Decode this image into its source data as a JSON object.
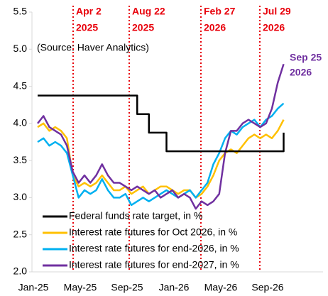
{
  "chart_data": {
    "type": "line",
    "categories": [
      "Jan-25",
      null,
      null,
      null,
      null,
      null,
      null,
      null,
      "May-25",
      null,
      null,
      null,
      null,
      null,
      null,
      null,
      "Sep-25",
      null,
      null,
      null,
      null,
      null,
      null,
      null,
      "Jan-26",
      null,
      null,
      null,
      null,
      null,
      null,
      null,
      "May-26",
      null,
      null,
      null,
      null,
      null,
      null,
      null,
      "Sep-26",
      null,
      null,
      null,
      null,
      null,
      null,
      null
    ],
    "series": [
      {
        "name": "Federal funds rate target, in %",
        "color": "#000000",
        "step": true,
        "values": [
          4.375,
          4.375,
          4.375,
          4.375,
          4.375,
          4.375,
          4.375,
          4.375,
          4.375,
          4.375,
          4.375,
          4.375,
          4.375,
          4.375,
          4.375,
          4.375,
          4.375,
          4.125,
          4.125,
          3.875,
          3.875,
          3.875,
          3.625,
          3.625,
          3.625,
          3.625,
          3.625,
          3.625,
          3.625,
          3.625,
          3.625,
          3.625,
          3.625,
          3.625,
          3.625,
          3.625,
          3.625,
          3.625,
          3.625,
          3.625,
          3.625,
          3.625,
          3.875,
          null,
          null,
          null,
          null,
          null
        ]
      },
      {
        "name": "Interest rate futures for Oct 2026, in %",
        "color": "#ffc000",
        "values": [
          3.95,
          4.0,
          3.9,
          3.95,
          3.9,
          3.8,
          3.3,
          3.15,
          3.2,
          3.15,
          3.2,
          3.3,
          3.2,
          3.1,
          3.1,
          3.15,
          3.05,
          3.1,
          3.15,
          3.05,
          3.1,
          3.15,
          3.15,
          3.1,
          3.05,
          3.1,
          3.1,
          3.0,
          3.05,
          3.15,
          3.3,
          3.5,
          3.6,
          3.65,
          3.6,
          3.7,
          3.8,
          3.85,
          3.8,
          3.85,
          3.8,
          3.9,
          4.05,
          null,
          null,
          null,
          null,
          null
        ]
      },
      {
        "name": "Interest rate futures for end-2026, in %",
        "color": "#00b0f0",
        "values": [
          3.75,
          3.8,
          3.7,
          3.75,
          3.7,
          3.6,
          3.3,
          3.0,
          3.1,
          3.05,
          3.1,
          3.25,
          3.1,
          3.0,
          3.0,
          3.05,
          2.9,
          2.95,
          3.0,
          2.95,
          3.0,
          3.05,
          3.1,
          3.05,
          3.0,
          3.05,
          3.1,
          3.0,
          3.1,
          3.2,
          3.45,
          3.6,
          3.8,
          3.9,
          3.85,
          3.95,
          4.0,
          4.05,
          3.95,
          4.05,
          4.1,
          4.2,
          4.27,
          null,
          null,
          null,
          null,
          null
        ]
      },
      {
        "name": "Interest rate futures for end-2027, in %",
        "color": "#7030a0",
        "values": [
          4.0,
          4.1,
          3.95,
          3.9,
          3.85,
          3.7,
          3.35,
          3.2,
          3.3,
          3.2,
          3.3,
          3.45,
          3.3,
          3.2,
          3.2,
          3.15,
          3.1,
          3.15,
          3.1,
          3.05,
          3.1,
          3.0,
          3.05,
          3.1,
          3.0,
          3.05,
          3.0,
          2.85,
          2.95,
          2.9,
          2.95,
          3.05,
          3.6,
          3.9,
          3.9,
          4.0,
          4.05,
          4.0,
          3.95,
          4.0,
          4.2,
          4.55,
          4.8,
          null,
          null,
          null,
          null,
          null
        ]
      }
    ],
    "ylim": [
      2.0,
      5.5
    ],
    "yticks": [
      {
        "value": 2.0,
        "label": "2.0"
      },
      {
        "value": 2.5,
        "label": "2.5"
      },
      {
        "value": 3.0,
        "label": "3.0"
      },
      {
        "value": 3.5,
        "label": "3.5"
      },
      {
        "value": 4.0,
        "label": "4.0"
      },
      {
        "value": 4.5,
        "label": "4.5"
      },
      {
        "value": 5.0,
        "label": "5.0"
      },
      {
        "value": 5.5,
        "label": "5.5"
      }
    ],
    "annotations": [
      {
        "lines": [
          "Apr 2",
          "2025"
        ]
      },
      {
        "lines": [
          "Aug 22",
          "2025"
        ]
      },
      {
        "lines": [
          "Feb 27",
          "2026"
        ]
      },
      {
        "lines": [
          "Jul 29",
          "2026"
        ]
      }
    ],
    "source": "(Source: Haver Analytics)",
    "end_label": [
      "Sep 25",
      "2026"
    ]
  }
}
